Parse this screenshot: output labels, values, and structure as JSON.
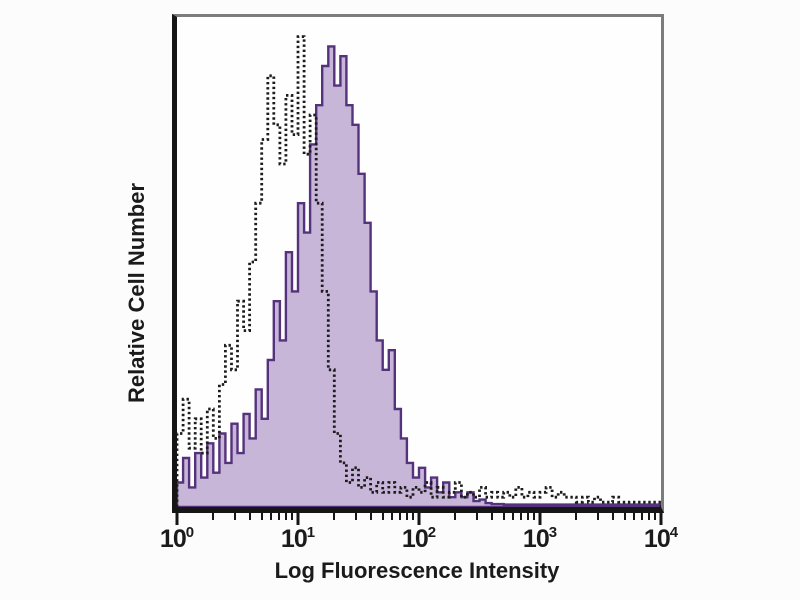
{
  "page": {
    "background": "#fcfcfc",
    "text_color": "#1b1b1b"
  },
  "chart_data": {
    "type": "histogram",
    "subtype": "flow-cytometry-overlay",
    "title": "",
    "xlabel": "Log Fluorescence Intensity",
    "ylabel": "Relative Cell Number",
    "x_scale": "log10",
    "x_range_decades": [
      0,
      4
    ],
    "x_range_values": [
      1,
      10000
    ],
    "y_axis_ticks": "none",
    "grid": false,
    "legend": "none",
    "frame": {
      "top_right_border_color": "#7c7c7c",
      "axis_color": "#161616"
    },
    "x_ticks": [
      {
        "base": "10",
        "exp": "0"
      },
      {
        "base": "10",
        "exp": "1"
      },
      {
        "base": "10",
        "exp": "2"
      },
      {
        "base": "10",
        "exp": "3"
      },
      {
        "base": "10",
        "exp": "4"
      }
    ],
    "minor_ticks": "log-spaced 2-9 per decade",
    "log_start": 0,
    "log_step": 0.05,
    "values_are": "fraction of plot height at each log10(x) step",
    "series": [
      {
        "name": "purple filled histogram",
        "style": "filled",
        "fill": "#c8b6d9",
        "stroke": "#55327c",
        "stroke_width": 2.4,
        "peak_log_x": 1.25,
        "values": [
          0.05,
          0.1,
          0.04,
          0.11,
          0.06,
          0.13,
          0.07,
          0.15,
          0.09,
          0.17,
          0.11,
          0.19,
          0.14,
          0.24,
          0.18,
          0.3,
          0.42,
          0.34,
          0.52,
          0.44,
          0.62,
          0.56,
          0.74,
          0.82,
          0.9,
          0.94,
          0.86,
          0.92,
          0.82,
          0.78,
          0.68,
          0.58,
          0.44,
          0.34,
          0.28,
          0.32,
          0.2,
          0.14,
          0.09,
          0.06,
          0.08,
          0.04,
          0.06,
          0.03,
          0.05,
          0.02,
          0.03,
          0.02,
          0.03,
          0.012,
          0.015,
          0.008,
          0.006,
          0.006,
          0.005,
          0.005,
          0.005,
          0.005,
          0.005,
          0.005,
          0.005,
          0.005,
          0.005,
          0.005,
          0.005,
          0.005,
          0.005,
          0.005,
          0.005,
          0.005,
          0.005,
          0.005,
          0.005,
          0.005,
          0.005,
          0.005,
          0.005,
          0.005,
          0.005,
          0.005,
          0.005
        ]
      },
      {
        "name": "black dashed outline histogram",
        "style": "dashed-outline",
        "fill": "none",
        "stroke": "#1c1c1c",
        "stroke_width": 2.8,
        "dash": "2.4 2.7",
        "peak_log_x": 1.0,
        "values": [
          0.15,
          0.22,
          0.12,
          0.18,
          0.11,
          0.2,
          0.14,
          0.25,
          0.33,
          0.28,
          0.42,
          0.36,
          0.5,
          0.62,
          0.75,
          0.88,
          0.78,
          0.7,
          0.84,
          0.76,
          0.96,
          0.72,
          0.8,
          0.62,
          0.44,
          0.28,
          0.15,
          0.09,
          0.05,
          0.08,
          0.04,
          0.06,
          0.03,
          0.05,
          0.03,
          0.05,
          0.03,
          0.04,
          0.02,
          0.04,
          0.03,
          0.05,
          0.02,
          0.04,
          0.02,
          0.03,
          0.05,
          0.02,
          0.03,
          0.02,
          0.04,
          0.02,
          0.03,
          0.02,
          0.03,
          0.02,
          0.04,
          0.02,
          0.03,
          0.02,
          0.03,
          0.04,
          0.02,
          0.03,
          0.02,
          0.02,
          0.01,
          0.02,
          0.01,
          0.02,
          0.01,
          0.01,
          0.02,
          0.01,
          0.01,
          0.01,
          0.01,
          0.01,
          0.01,
          0.01,
          0.01
        ]
      }
    ]
  }
}
